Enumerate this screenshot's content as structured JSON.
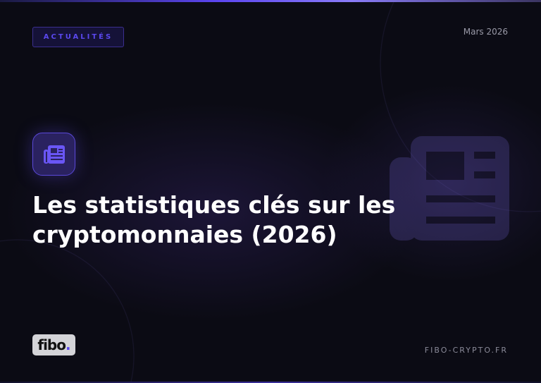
{
  "badge": "ACTUALITÉS",
  "date": "Mars 2026",
  "title_line1": "Les statistiques clés sur les",
  "title_line2": "cryptomonnaies (2026)",
  "logo": {
    "text": "fibo",
    "dot": "."
  },
  "site": "FIBO-CRYPTO.FR",
  "icon": "newspaper-icon",
  "colors": {
    "accent": "#5a48ee",
    "background": "#0b0b14"
  }
}
